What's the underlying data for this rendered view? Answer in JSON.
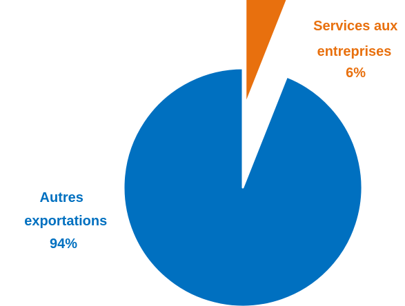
{
  "chart_data": {
    "type": "pie",
    "title": "",
    "slices": [
      {
        "name": "Services aux entreprises",
        "value": 6,
        "label_lines": [
          "Services aux",
          "entreprises",
          "6%"
        ],
        "color": "#E8700E",
        "exploded": true
      },
      {
        "name": "Autres exportations",
        "value": 94,
        "label_lines": [
          "Autres",
          "exportations",
          "94%"
        ],
        "color": "#0070C0",
        "exploded": false
      }
    ],
    "legend": "none",
    "start_angle": "12 o'clock, clockwise"
  }
}
